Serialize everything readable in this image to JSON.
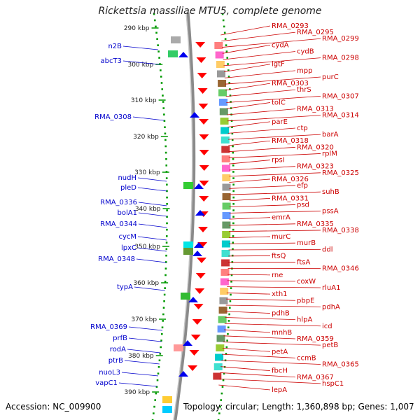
{
  "title": "Rickettsia massiliae MTU5, complete genome",
  "accession_text": "Accession: NC_009900",
  "topology_text": "Topology: circular; Length: 1,360,898 bp; Genes: 1,007",
  "colors": {
    "forward_label": "#cc0000",
    "reverse_label": "#0000cc",
    "backbone": "#8a8a8a",
    "tick": "#009900"
  },
  "ticks": [
    "290 kbp",
    "300 kbp",
    "310 kbp",
    "320 kbp",
    "330 kbp",
    "340 kbp",
    "350 kbp",
    "360 kbp",
    "370 kbp",
    "380 kbp",
    "390 kbp"
  ],
  "left_labels": [
    "n2B",
    "abcT3",
    "RMA_0308",
    "nudH",
    "pleD",
    "RMA_0336",
    "bolA1",
    "RMA_0344",
    "cycM",
    "lpxC",
    "RMA_0348",
    "typA",
    "RMA_0369",
    "prfB",
    "rodA",
    "ptrB",
    "nuoL3",
    "vapC1"
  ],
  "right_labels": [
    "RMA_0293",
    "RMA_0295",
    "RMA_0299",
    "cydA",
    "cydB",
    "RMA_0298",
    "lgtF",
    "mpp",
    "purC",
    "RMA_0303",
    "thrS",
    "RMA_0307",
    "tolC",
    "RMA_0313",
    "RMA_0314",
    "parE",
    "ctp",
    "barA",
    "RMA_0318",
    "RMA_0320",
    "rplM",
    "rpsI",
    "RMA_0323",
    "RMA_0325",
    "RMA_0326",
    "efp",
    "suhB",
    "RMA_0331",
    "psd",
    "pssA",
    "emrA",
    "RMA_0335",
    "RMA_0338",
    "murC",
    "murB",
    "ddl",
    "ftsQ",
    "ftsA",
    "RMA_0346",
    "rne",
    "coxW",
    "rluA1",
    "xth1",
    "pbpE",
    "pdhA",
    "pdhB",
    "hlpA",
    "icd",
    "mnhB",
    "RMA_0359",
    "petB",
    "petA",
    "ccmB",
    "RMA_0365",
    "fbcH",
    "RMA_0367",
    "hspC1",
    "lepA"
  ]
}
